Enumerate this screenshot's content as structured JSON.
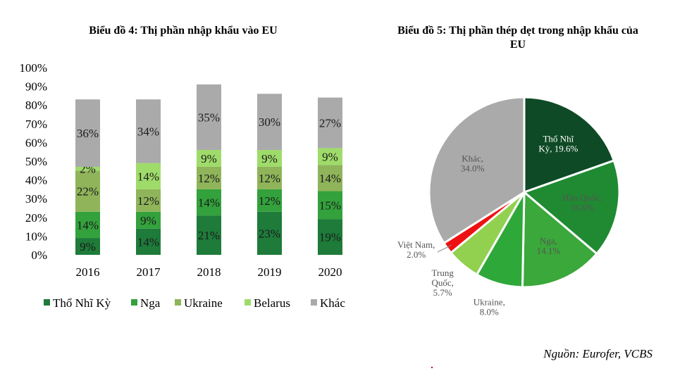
{
  "chart_data": [
    {
      "type": "bar",
      "stacked": true,
      "title": "Biểu đồ 4: Thị phần nhập khẩu vào EU",
      "xlabel": "",
      "ylabel": "",
      "ylim": [
        0,
        100
      ],
      "yticks": [
        "0%",
        "10%",
        "20%",
        "30%",
        "40%",
        "50%",
        "60%",
        "70%",
        "80%",
        "90%",
        "100%"
      ],
      "categories": [
        "2016",
        "2017",
        "2018",
        "2019",
        "2020"
      ],
      "legend_position": "bottom",
      "series": [
        {
          "name": "Thổ Nhĩ Kỳ",
          "color": "#1e7b3a",
          "values": [
            9,
            14,
            21,
            23,
            19
          ]
        },
        {
          "name": "Nga",
          "color": "#33a13c",
          "values": [
            14,
            9,
            14,
            12,
            15
          ]
        },
        {
          "name": "Ukraine",
          "color": "#8fb45a",
          "values": [
            22,
            12,
            12,
            12,
            14
          ]
        },
        {
          "name": "Belarus",
          "color": "#9fdb6a",
          "values": [
            2,
            14,
            9,
            9,
            9
          ]
        },
        {
          "name": "Khác",
          "color": "#aaaaaa",
          "values": [
            36,
            34,
            35,
            30,
            27
          ]
        }
      ]
    },
    {
      "type": "pie",
      "title": "Biểu đồ 5: Thị phần thép dẹt trong nhập khẩu của EU",
      "slices": [
        {
          "name": "Thổ Nhĩ Kỳ",
          "value": 19.6,
          "label_lines": [
            "Thổ Nhĩ",
            "Kỳ, 19.6%"
          ],
          "color": "#0e4a25",
          "text_color": "#ffffff"
        },
        {
          "name": "Hàn Quốc",
          "value": 16.6,
          "label_lines": [
            "Hàn Quốc,",
            "16.6%"
          ],
          "color": "#1f8a32",
          "text_color": "#555555"
        },
        {
          "name": "Nga",
          "value": 14.1,
          "label_lines": [
            "Nga,",
            "14.1%"
          ],
          "color": "#3aa83a",
          "text_color": "#555555"
        },
        {
          "name": "Ukraine",
          "value": 8.0,
          "label_lines": [
            "Ukraine,",
            "8.0%"
          ],
          "color": "#2fa83a",
          "text_color": "#555555"
        },
        {
          "name": "Trung Quốc",
          "value": 5.7,
          "label_lines": [
            "Trung",
            "Quốc,",
            "5.7%"
          ],
          "color": "#92d050",
          "text_color": "#555555"
        },
        {
          "name": "Việt Nam",
          "value": 2.0,
          "label_lines": [
            "Việt Nam,",
            "2.0%"
          ],
          "color": "#ee1111",
          "text_color": "#555555"
        },
        {
          "name": "Khác",
          "value": 34.0,
          "label_lines": [
            "Khác,",
            "34.0%"
          ],
          "color": "#aaaaaa",
          "text_color": "#555555"
        }
      ]
    }
  ],
  "source": "Nguồn: Eurofer, VCBS"
}
